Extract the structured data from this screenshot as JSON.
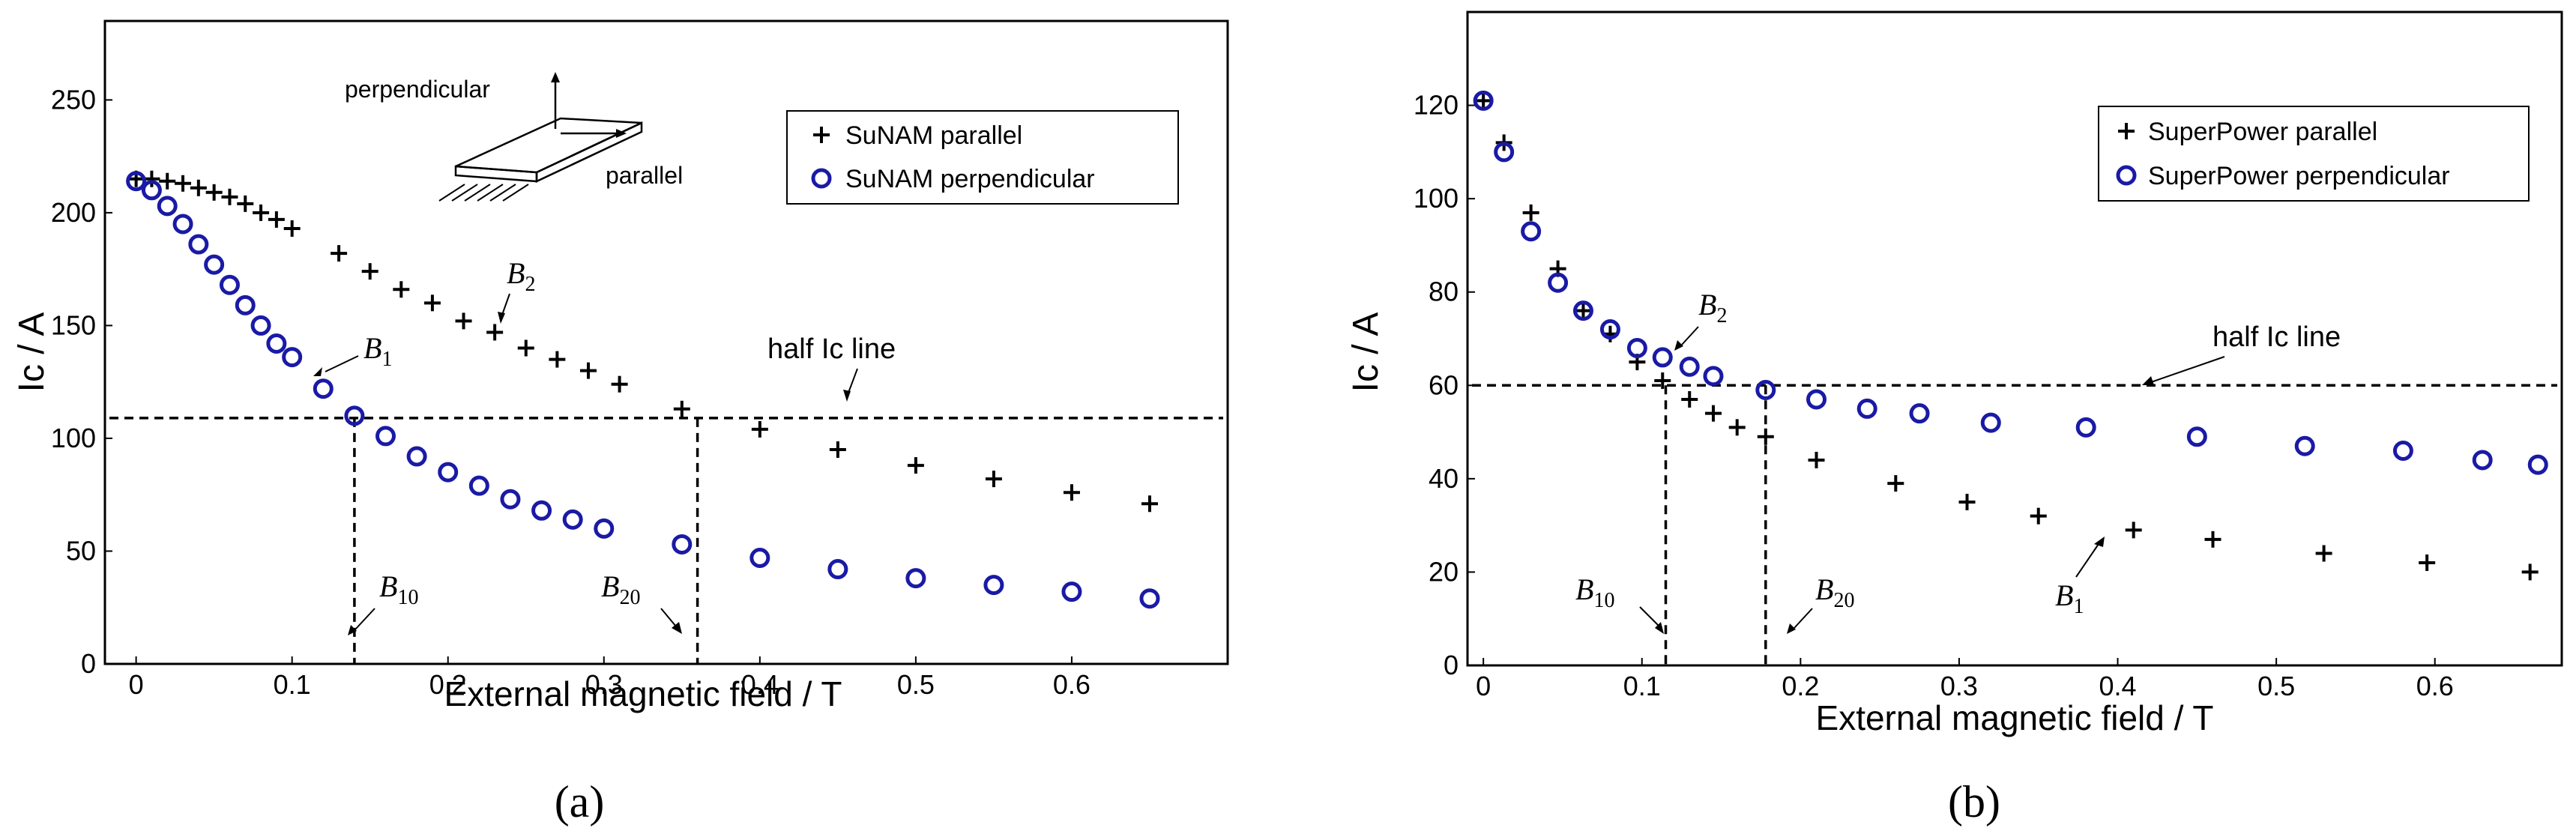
{
  "chart_data": [
    {
      "type": "scatter",
      "panel_label": "(a)",
      "xlabel": "External magnetic field / T",
      "ylabel": "Ic / A",
      "xlim": [
        -0.02,
        0.7
      ],
      "ylim": [
        0,
        285
      ],
      "xticks": [
        0,
        0.1,
        0.2,
        0.3,
        0.4,
        0.5,
        0.6
      ],
      "xtick_labels": [
        "0",
        "0.1",
        "0.2",
        "0.3",
        "0.4",
        "0.5",
        "0.6"
      ],
      "yticks": [
        0,
        50,
        100,
        150,
        200,
        250
      ],
      "ytick_labels": [
        "0",
        "50",
        "100",
        "150",
        "200",
        "250"
      ],
      "legend_position": "top-right",
      "colors": {
        "parallel": "#000000",
        "perpendicular": "#1a1aa6"
      },
      "series": [
        {
          "name": "SuNAM parallel",
          "marker": "plus",
          "x": [
            0,
            0.01,
            0.02,
            0.03,
            0.04,
            0.05,
            0.06,
            0.07,
            0.08,
            0.09,
            0.1,
            0.13,
            0.15,
            0.17,
            0.19,
            0.21,
            0.23,
            0.25,
            0.27,
            0.29,
            0.31,
            0.35,
            0.4,
            0.45,
            0.5,
            0.55,
            0.6,
            0.65
          ],
          "y": [
            215,
            215,
            214,
            213,
            211,
            209,
            207,
            204,
            200,
            197,
            193,
            182,
            174,
            166,
            160,
            152,
            147,
            140,
            135,
            130,
            124,
            113,
            104,
            95,
            88,
            82,
            76,
            71
          ]
        },
        {
          "name": "SuNAM perpendicular",
          "marker": "circle",
          "x": [
            0,
            0.01,
            0.02,
            0.03,
            0.04,
            0.05,
            0.06,
            0.07,
            0.08,
            0.09,
            0.1,
            0.12,
            0.14,
            0.16,
            0.18,
            0.2,
            0.22,
            0.24,
            0.26,
            0.28,
            0.3,
            0.35,
            0.4,
            0.45,
            0.5,
            0.55,
            0.6,
            0.65
          ],
          "y": [
            214,
            210,
            203,
            195,
            186,
            177,
            168,
            159,
            150,
            142,
            136,
            122,
            110,
            101,
            92,
            85,
            79,
            73,
            68,
            64,
            60,
            53,
            47,
            42,
            38,
            35,
            32,
            29
          ]
        }
      ],
      "reference_lines": [
        {
          "kind": "horizontal",
          "y": 109,
          "label": "half Ic line"
        },
        {
          "kind": "vertical",
          "x": 0.14,
          "y_top": 109,
          "label": "B10"
        },
        {
          "kind": "vertical",
          "x": 0.36,
          "y_top": 109,
          "label": "B20"
        }
      ],
      "annotations": {
        "half_line": "half Ic line",
        "b1": {
          "main": "B",
          "sub": "1",
          "x": 0.145,
          "y": 134
        },
        "b2": {
          "main": "B",
          "sub": "2",
          "x": 0.23,
          "y": 167
        },
        "b10": {
          "main": "B",
          "sub": "10",
          "x": 0.14,
          "y": 20
        },
        "b20": {
          "main": "B",
          "sub": "20",
          "x": 0.35,
          "y": 20
        },
        "inset": {
          "perpendicular": "perpendicular",
          "parallel": "parallel"
        }
      }
    },
    {
      "type": "scatter",
      "panel_label": "(b)",
      "xlabel": "External magnetic field / T",
      "ylabel": "Ic / A",
      "xlim": [
        -0.01,
        0.68
      ],
      "ylim": [
        0,
        140
      ],
      "xticks": [
        0,
        0.1,
        0.2,
        0.3,
        0.4,
        0.5,
        0.6
      ],
      "xtick_labels": [
        "0",
        "0.1",
        "0.2",
        "0.3",
        "0.4",
        "0.5",
        "0.6"
      ],
      "yticks": [
        0,
        20,
        40,
        60,
        80,
        100,
        120
      ],
      "ytick_labels": [
        "0",
        "20",
        "40",
        "60",
        "80",
        "100",
        "120"
      ],
      "legend_position": "top-right",
      "colors": {
        "parallel": "#000000",
        "perpendicular": "#1a1aa6"
      },
      "series": [
        {
          "name": "SuperPower parallel",
          "marker": "plus",
          "x": [
            0,
            0.013,
            0.03,
            0.047,
            0.063,
            0.08,
            0.097,
            0.113,
            0.13,
            0.145,
            0.16,
            0.178,
            0.21,
            0.26,
            0.305,
            0.35,
            0.41,
            0.46,
            0.53,
            0.595,
            0.66
          ],
          "y": [
            121,
            112,
            97,
            85,
            76,
            71,
            65,
            61,
            57,
            54,
            51,
            49,
            44,
            39,
            35,
            32,
            29,
            27,
            24,
            22,
            20
          ]
        },
        {
          "name": "SuperPower perpendicular",
          "marker": "circle",
          "x": [
            0,
            0.013,
            0.03,
            0.047,
            0.063,
            0.08,
            0.097,
            0.113,
            0.13,
            0.145,
            0.178,
            0.21,
            0.242,
            0.275,
            0.32,
            0.38,
            0.45,
            0.518,
            0.58,
            0.63,
            0.665
          ],
          "y": [
            121,
            110,
            93,
            82,
            76,
            72,
            68,
            66,
            64,
            62,
            59,
            57,
            55,
            54,
            52,
            51,
            49,
            47,
            46,
            44,
            43
          ]
        }
      ],
      "reference_lines": [
        {
          "kind": "horizontal",
          "y": 60,
          "label": "half Ic line"
        },
        {
          "kind": "vertical",
          "x": 0.115,
          "y_top": 60,
          "label": "B10"
        },
        {
          "kind": "vertical",
          "x": 0.178,
          "y_top": 60,
          "label": "B20"
        }
      ],
      "annotations": {
        "half_line": "half Ic line",
        "b1": {
          "main": "B",
          "sub": "1",
          "x": 0.405,
          "y": 28
        },
        "b2": {
          "main": "B",
          "sub": "2",
          "x": 0.118,
          "y": 68
        },
        "b10": {
          "main": "B",
          "sub": "10",
          "x": 0.11,
          "y": 11
        },
        "b20": {
          "main": "B",
          "sub": "20",
          "x": 0.18,
          "y": 11
        }
      }
    }
  ]
}
